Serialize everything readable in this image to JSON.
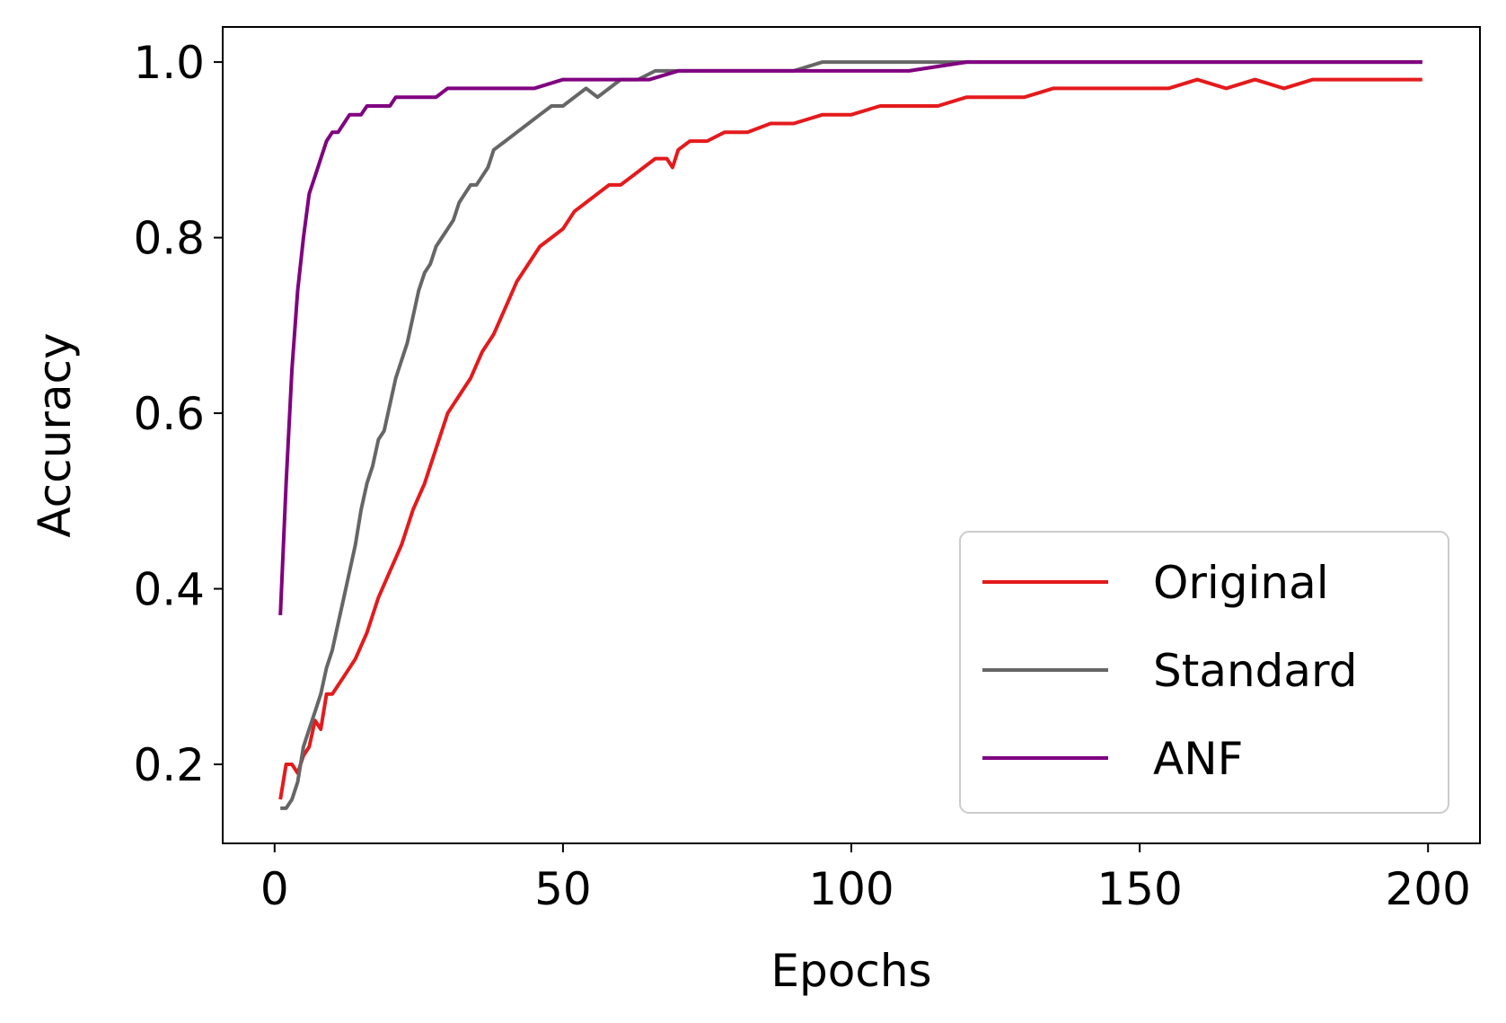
{
  "chart_data": {
    "type": "line",
    "title": "",
    "xlabel": "Epochs",
    "ylabel": "Accuracy",
    "xlim": [
      -9,
      209
    ],
    "ylim": [
      0.11,
      1.04
    ],
    "xticks": [
      0,
      50,
      100,
      150,
      200
    ],
    "xtick_labels": [
      "0",
      "50",
      "100",
      "150",
      "200"
    ],
    "yticks": [
      0.2,
      0.4,
      0.6,
      0.8,
      1.0
    ],
    "ytick_labels": [
      "0.2",
      "0.4",
      "0.6",
      "0.8",
      "1.0"
    ],
    "grid": false,
    "legend_position": "bottom-right",
    "series": [
      {
        "name": "Original",
        "color": "#e41a1c",
        "points": [
          [
            1,
            0.16
          ],
          [
            2,
            0.2
          ],
          [
            3,
            0.2
          ],
          [
            4,
            0.19
          ],
          [
            5,
            0.21
          ],
          [
            6,
            0.22
          ],
          [
            7,
            0.25
          ],
          [
            8,
            0.24
          ],
          [
            9,
            0.28
          ],
          [
            10,
            0.28
          ],
          [
            12,
            0.3
          ],
          [
            14,
            0.32
          ],
          [
            16,
            0.35
          ],
          [
            18,
            0.39
          ],
          [
            20,
            0.42
          ],
          [
            22,
            0.45
          ],
          [
            24,
            0.49
          ],
          [
            26,
            0.52
          ],
          [
            28,
            0.56
          ],
          [
            30,
            0.6
          ],
          [
            32,
            0.62
          ],
          [
            34,
            0.64
          ],
          [
            36,
            0.67
          ],
          [
            38,
            0.69
          ],
          [
            40,
            0.72
          ],
          [
            42,
            0.75
          ],
          [
            44,
            0.77
          ],
          [
            46,
            0.79
          ],
          [
            48,
            0.8
          ],
          [
            50,
            0.81
          ],
          [
            52,
            0.83
          ],
          [
            54,
            0.84
          ],
          [
            56,
            0.85
          ],
          [
            58,
            0.86
          ],
          [
            60,
            0.86
          ],
          [
            62,
            0.87
          ],
          [
            64,
            0.88
          ],
          [
            66,
            0.89
          ],
          [
            68,
            0.89
          ],
          [
            69,
            0.88
          ],
          [
            70,
            0.9
          ],
          [
            72,
            0.91
          ],
          [
            75,
            0.91
          ],
          [
            78,
            0.92
          ],
          [
            82,
            0.92
          ],
          [
            86,
            0.93
          ],
          [
            90,
            0.93
          ],
          [
            95,
            0.94
          ],
          [
            100,
            0.94
          ],
          [
            105,
            0.95
          ],
          [
            110,
            0.95
          ],
          [
            115,
            0.95
          ],
          [
            120,
            0.96
          ],
          [
            125,
            0.96
          ],
          [
            130,
            0.96
          ],
          [
            135,
            0.97
          ],
          [
            140,
            0.97
          ],
          [
            145,
            0.97
          ],
          [
            150,
            0.97
          ],
          [
            155,
            0.97
          ],
          [
            160,
            0.98
          ],
          [
            165,
            0.97
          ],
          [
            170,
            0.98
          ],
          [
            175,
            0.97
          ],
          [
            180,
            0.98
          ],
          [
            185,
            0.98
          ],
          [
            190,
            0.98
          ],
          [
            195,
            0.98
          ],
          [
            199,
            0.98
          ]
        ]
      },
      {
        "name": "Standard",
        "color": "#666666",
        "points": [
          [
            1,
            0.15
          ],
          [
            2,
            0.15
          ],
          [
            3,
            0.16
          ],
          [
            4,
            0.18
          ],
          [
            5,
            0.22
          ],
          [
            6,
            0.24
          ],
          [
            7,
            0.26
          ],
          [
            8,
            0.28
          ],
          [
            9,
            0.31
          ],
          [
            10,
            0.33
          ],
          [
            11,
            0.36
          ],
          [
            12,
            0.39
          ],
          [
            13,
            0.42
          ],
          [
            14,
            0.45
          ],
          [
            15,
            0.49
          ],
          [
            16,
            0.52
          ],
          [
            17,
            0.54
          ],
          [
            18,
            0.57
          ],
          [
            19,
            0.58
          ],
          [
            20,
            0.61
          ],
          [
            21,
            0.64
          ],
          [
            22,
            0.66
          ],
          [
            23,
            0.68
          ],
          [
            24,
            0.71
          ],
          [
            25,
            0.74
          ],
          [
            26,
            0.76
          ],
          [
            27,
            0.77
          ],
          [
            28,
            0.79
          ],
          [
            29,
            0.8
          ],
          [
            30,
            0.81
          ],
          [
            31,
            0.82
          ],
          [
            32,
            0.84
          ],
          [
            33,
            0.85
          ],
          [
            34,
            0.86
          ],
          [
            35,
            0.86
          ],
          [
            36,
            0.87
          ],
          [
            37,
            0.88
          ],
          [
            38,
            0.9
          ],
          [
            40,
            0.91
          ],
          [
            42,
            0.92
          ],
          [
            44,
            0.93
          ],
          [
            46,
            0.94
          ],
          [
            48,
            0.95
          ],
          [
            50,
            0.95
          ],
          [
            52,
            0.96
          ],
          [
            54,
            0.97
          ],
          [
            56,
            0.96
          ],
          [
            58,
            0.97
          ],
          [
            60,
            0.98
          ],
          [
            63,
            0.98
          ],
          [
            66,
            0.99
          ],
          [
            70,
            0.99
          ],
          [
            75,
            0.99
          ],
          [
            80,
            0.99
          ],
          [
            85,
            0.99
          ],
          [
            90,
            0.99
          ],
          [
            95,
            1.0
          ],
          [
            100,
            1.0
          ],
          [
            105,
            1.0
          ],
          [
            110,
            1.0
          ],
          [
            120,
            1.0
          ],
          [
            130,
            1.0
          ],
          [
            140,
            1.0
          ],
          [
            150,
            1.0
          ],
          [
            160,
            1.0
          ],
          [
            170,
            1.0
          ],
          [
            180,
            1.0
          ],
          [
            190,
            1.0
          ],
          [
            199,
            1.0
          ]
        ]
      },
      {
        "name": "ANF",
        "color": "#800080",
        "points": [
          [
            1,
            0.37
          ],
          [
            2,
            0.52
          ],
          [
            3,
            0.65
          ],
          [
            4,
            0.74
          ],
          [
            5,
            0.8
          ],
          [
            6,
            0.85
          ],
          [
            7,
            0.87
          ],
          [
            8,
            0.89
          ],
          [
            9,
            0.91
          ],
          [
            10,
            0.92
          ],
          [
            11,
            0.92
          ],
          [
            12,
            0.93
          ],
          [
            13,
            0.94
          ],
          [
            14,
            0.94
          ],
          [
            15,
            0.94
          ],
          [
            16,
            0.95
          ],
          [
            17,
            0.95
          ],
          [
            18,
            0.95
          ],
          [
            19,
            0.95
          ],
          [
            20,
            0.95
          ],
          [
            21,
            0.96
          ],
          [
            22,
            0.96
          ],
          [
            24,
            0.96
          ],
          [
            26,
            0.96
          ],
          [
            28,
            0.96
          ],
          [
            30,
            0.97
          ],
          [
            35,
            0.97
          ],
          [
            40,
            0.97
          ],
          [
            45,
            0.97
          ],
          [
            50,
            0.98
          ],
          [
            55,
            0.98
          ],
          [
            60,
            0.98
          ],
          [
            65,
            0.98
          ],
          [
            70,
            0.99
          ],
          [
            75,
            0.99
          ],
          [
            80,
            0.99
          ],
          [
            85,
            0.99
          ],
          [
            90,
            0.99
          ],
          [
            95,
            0.99
          ],
          [
            100,
            0.99
          ],
          [
            110,
            0.99
          ],
          [
            120,
            1.0
          ],
          [
            130,
            1.0
          ],
          [
            140,
            1.0
          ],
          [
            150,
            1.0
          ],
          [
            160,
            1.0
          ],
          [
            170,
            1.0
          ],
          [
            180,
            1.0
          ],
          [
            190,
            1.0
          ],
          [
            199,
            1.0
          ]
        ]
      }
    ]
  }
}
